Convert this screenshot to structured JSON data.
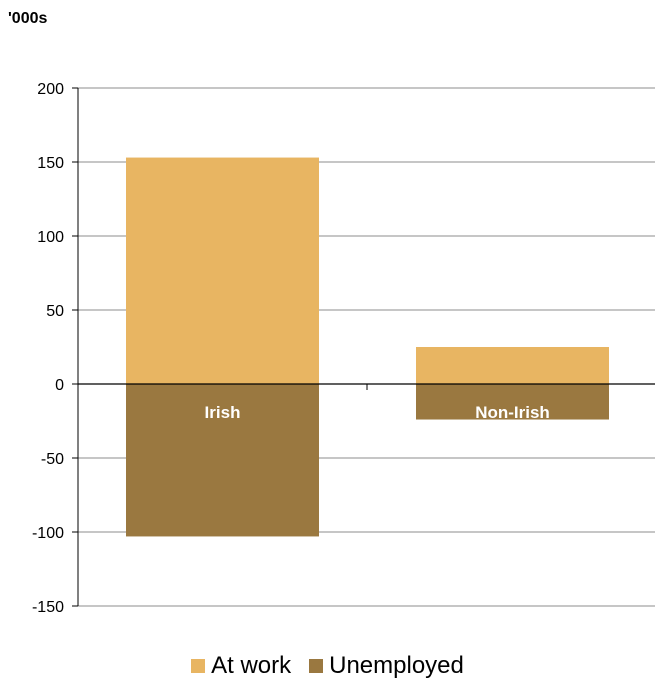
{
  "chart_data": {
    "type": "bar",
    "stacked": true,
    "y_unit_label": "'000s",
    "categories": [
      "Irish",
      "Non-Irish"
    ],
    "series": [
      {
        "name": "At work",
        "values": [
          153,
          25
        ],
        "color": "#E8B562"
      },
      {
        "name": "Unemployed",
        "values": [
          -103,
          -24
        ],
        "color": "#9A7840"
      }
    ],
    "ylim": [
      -150,
      200
    ],
    "yticks": [
      200,
      150,
      100,
      50,
      0,
      -50,
      -100,
      -150
    ],
    "grid": true,
    "legend_position": "bottom",
    "category_labels_inside_bars": true
  }
}
